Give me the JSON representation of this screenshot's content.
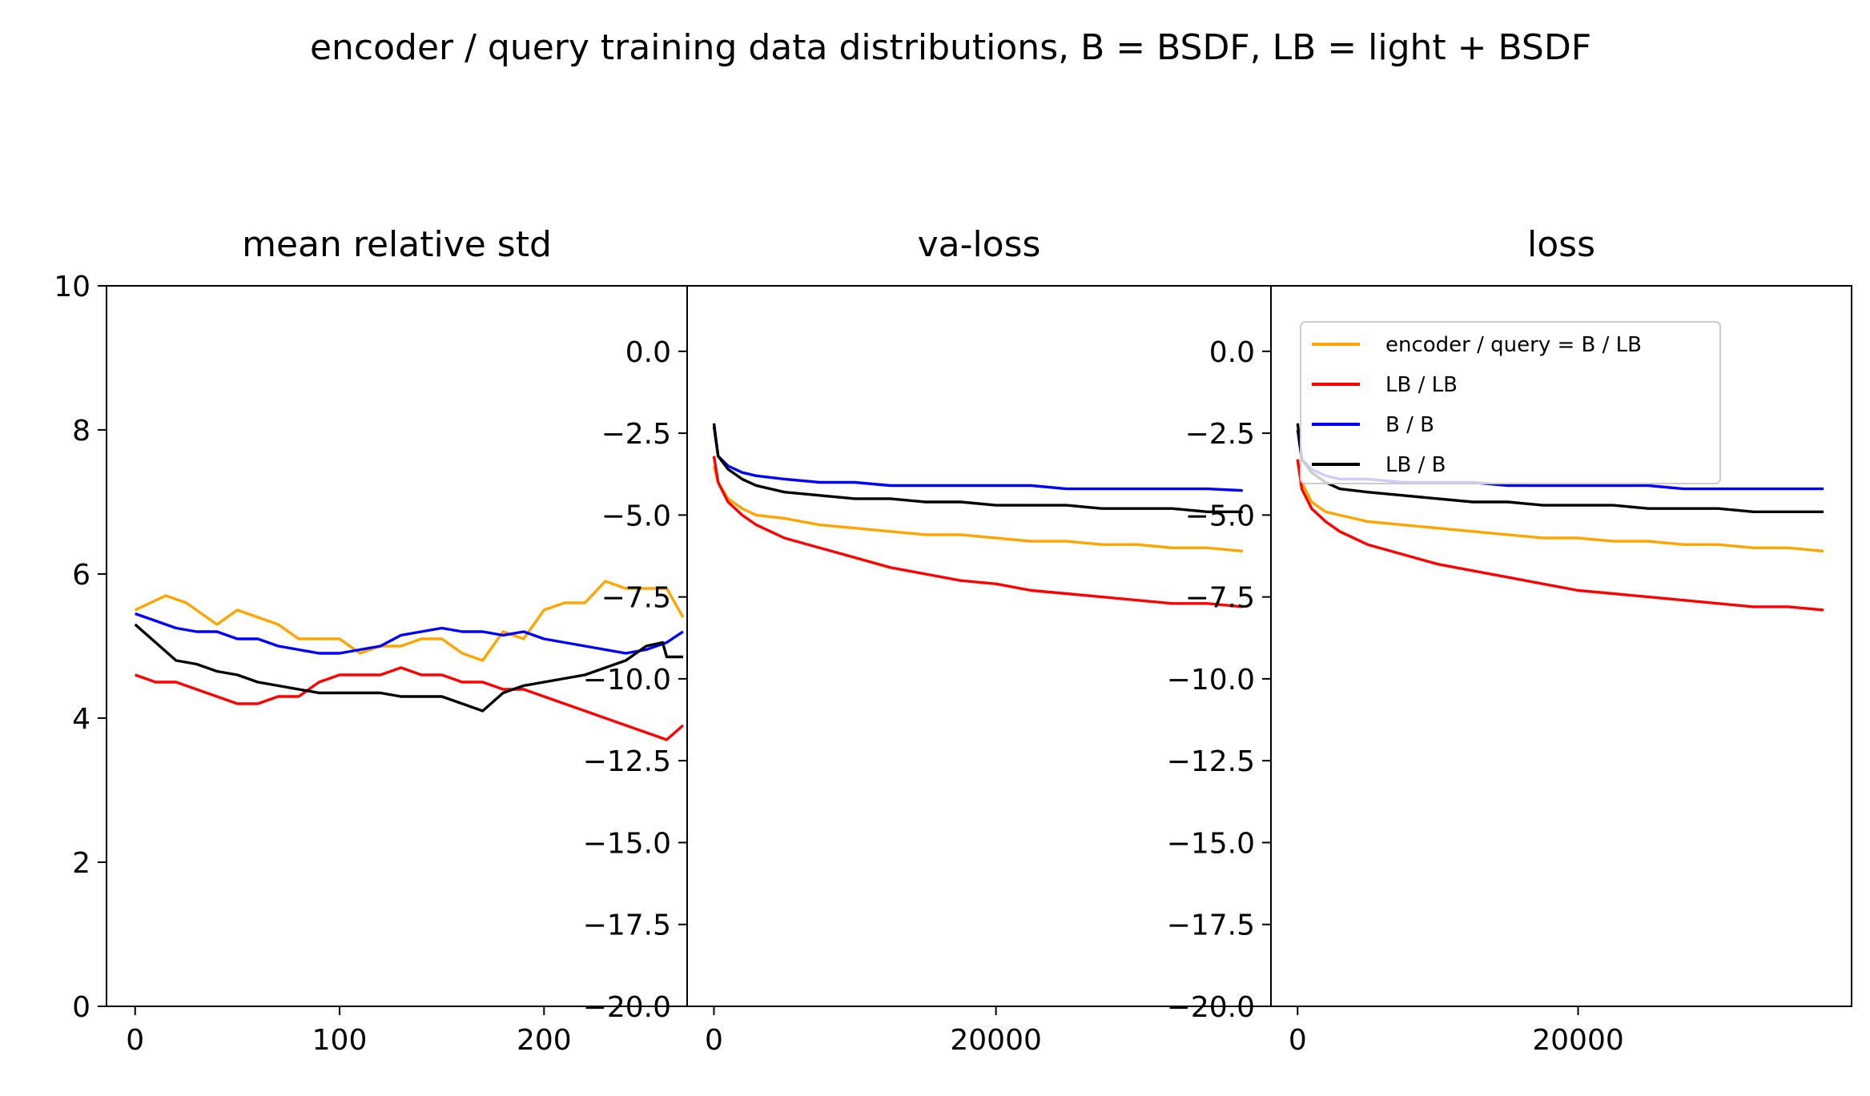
{
  "suptitle": "encoder / query training data distributions, B = BSDF, LB = light + BSDF",
  "chart_data": [
    {
      "type": "line",
      "title": "mean relative std",
      "xlabel": "",
      "ylabel": "",
      "xlim": [
        -14,
        270
      ],
      "ylim": [
        0,
        10
      ],
      "xticks": [
        0,
        100,
        200
      ],
      "xtick_labels": [
        "0",
        "100",
        "200"
      ],
      "yticks": [
        0,
        2,
        4,
        6,
        8,
        10
      ],
      "ytick_labels": [
        "0",
        "2",
        "4",
        "6",
        "8",
        "10"
      ],
      "grid": false,
      "series": [
        {
          "name": "encoder / query = B  / LB",
          "color": "#ffa500",
          "x": [
            0,
            15,
            25,
            40,
            50,
            60,
            70,
            80,
            90,
            100,
            110,
            120,
            130,
            140,
            150,
            160,
            170,
            180,
            190,
            200,
            210,
            220,
            230,
            240,
            250,
            260,
            268
          ],
          "y": [
            5.5,
            5.7,
            5.6,
            5.3,
            5.5,
            5.4,
            5.3,
            5.1,
            5.1,
            5.1,
            4.9,
            5.0,
            5.0,
            5.1,
            5.1,
            4.9,
            4.8,
            5.2,
            5.1,
            5.5,
            5.6,
            5.6,
            5.9,
            5.8,
            5.8,
            5.8,
            5.4
          ]
        },
        {
          "name": "LB / LB",
          "color": "#ff0000",
          "x": [
            0,
            10,
            20,
            30,
            40,
            50,
            60,
            70,
            80,
            90,
            100,
            110,
            120,
            130,
            140,
            150,
            160,
            170,
            180,
            190,
            200,
            210,
            220,
            230,
            240,
            250,
            260,
            268
          ],
          "y": [
            4.6,
            4.5,
            4.5,
            4.4,
            4.3,
            4.2,
            4.2,
            4.3,
            4.3,
            4.5,
            4.6,
            4.6,
            4.6,
            4.7,
            4.6,
            4.6,
            4.5,
            4.5,
            4.4,
            4.4,
            4.3,
            4.2,
            4.1,
            4.0,
            3.9,
            3.8,
            3.7,
            3.9
          ]
        },
        {
          "name": "B  / B",
          "color": "#0000ff",
          "x": [
            0,
            10,
            20,
            30,
            40,
            50,
            60,
            70,
            80,
            90,
            100,
            110,
            120,
            130,
            140,
            150,
            160,
            170,
            180,
            190,
            200,
            210,
            220,
            230,
            240,
            250,
            260,
            268
          ],
          "y": [
            5.45,
            5.35,
            5.25,
            5.2,
            5.2,
            5.1,
            5.1,
            5.0,
            4.95,
            4.9,
            4.9,
            4.95,
            5.0,
            5.15,
            5.2,
            5.25,
            5.2,
            5.2,
            5.15,
            5.2,
            5.1,
            5.05,
            5.0,
            4.95,
            4.9,
            4.95,
            5.05,
            5.2
          ]
        },
        {
          "name": "LB / B",
          "color": "#000000",
          "x": [
            0,
            10,
            20,
            30,
            40,
            50,
            60,
            70,
            80,
            90,
            100,
            110,
            120,
            130,
            140,
            150,
            160,
            170,
            180,
            190,
            200,
            210,
            220,
            230,
            240,
            250,
            258,
            260,
            268
          ],
          "y": [
            5.3,
            5.05,
            4.8,
            4.75,
            4.65,
            4.6,
            4.5,
            4.45,
            4.4,
            4.35,
            4.35,
            4.35,
            4.35,
            4.3,
            4.3,
            4.3,
            4.2,
            4.1,
            4.35,
            4.45,
            4.5,
            4.55,
            4.6,
            4.7,
            4.8,
            5.0,
            5.05,
            4.85,
            4.85
          ]
        }
      ]
    },
    {
      "type": "line",
      "title": "va-loss",
      "xlabel": "",
      "ylabel": "",
      "xlim": [
        -1900,
        39500
      ],
      "ylim": [
        -20,
        2
      ],
      "xticks": [
        0,
        20000
      ],
      "xtick_labels": [
        "0",
        "20000"
      ],
      "yticks": [
        0.0,
        -2.5,
        -5.0,
        -7.5,
        -10.0,
        -12.5,
        -15.0,
        -17.5,
        -20.0
      ],
      "ytick_labels": [
        "0.0",
        "−2.5",
        "−5.0",
        "−7.5",
        "−10.0",
        "−12.5",
        "−15.0",
        "−17.5",
        "−20.0"
      ],
      "grid": false,
      "series": [
        {
          "name": "encoder / query = B  / LB",
          "color": "#ffa500",
          "x": [
            0,
            300,
            1000,
            2000,
            3000,
            5000,
            7500,
            10000,
            12500,
            15000,
            17500,
            20000,
            22500,
            25000,
            27500,
            30000,
            32500,
            35000,
            37500
          ],
          "y": [
            -3.5,
            -4.0,
            -4.5,
            -4.8,
            -5.0,
            -5.1,
            -5.3,
            -5.4,
            -5.5,
            -5.6,
            -5.6,
            -5.7,
            -5.8,
            -5.8,
            -5.9,
            -5.9,
            -6.0,
            -6.0,
            -6.1
          ]
        },
        {
          "name": "LB / LB",
          "color": "#ff0000",
          "x": [
            0,
            300,
            1000,
            2000,
            3000,
            5000,
            7500,
            10000,
            12500,
            15000,
            17500,
            20000,
            22500,
            25000,
            27500,
            30000,
            32500,
            35000,
            37500
          ],
          "y": [
            -3.2,
            -4.0,
            -4.6,
            -5.0,
            -5.3,
            -5.7,
            -6.0,
            -6.3,
            -6.6,
            -6.8,
            -7.0,
            -7.1,
            -7.3,
            -7.4,
            -7.5,
            -7.6,
            -7.7,
            -7.7,
            -7.8
          ]
        },
        {
          "name": "B  / B",
          "color": "#0000ff",
          "x": [
            0,
            300,
            1000,
            2000,
            3000,
            5000,
            7500,
            10000,
            12500,
            15000,
            17500,
            20000,
            22500,
            25000,
            27500,
            30000,
            32500,
            35000,
            37500
          ],
          "y": [
            -2.3,
            -3.2,
            -3.5,
            -3.7,
            -3.8,
            -3.9,
            -4.0,
            -4.0,
            -4.1,
            -4.1,
            -4.1,
            -4.1,
            -4.1,
            -4.2,
            -4.2,
            -4.2,
            -4.2,
            -4.2,
            -4.25
          ]
        },
        {
          "name": "LB / B",
          "color": "#000000",
          "x": [
            0,
            300,
            1000,
            2000,
            3000,
            5000,
            7500,
            10000,
            12500,
            15000,
            17500,
            20000,
            22500,
            25000,
            27500,
            30000,
            32500,
            35000,
            37500
          ],
          "y": [
            -2.2,
            -3.2,
            -3.6,
            -3.9,
            -4.1,
            -4.3,
            -4.4,
            -4.5,
            -4.5,
            -4.6,
            -4.6,
            -4.7,
            -4.7,
            -4.7,
            -4.8,
            -4.8,
            -4.8,
            -4.9,
            -4.9
          ]
        }
      ]
    },
    {
      "type": "line",
      "title": "loss",
      "xlabel": "",
      "ylabel": "",
      "xlim": [
        -1900,
        39500
      ],
      "ylim": [
        -20,
        2
      ],
      "xticks": [
        0,
        20000
      ],
      "xtick_labels": [
        "0",
        "20000"
      ],
      "yticks": [
        0.0,
        -2.5,
        -5.0,
        -7.5,
        -10.0,
        -12.5,
        -15.0,
        -17.5,
        -20.0
      ],
      "ytick_labels": [
        "0.0",
        "−2.5",
        "−5.0",
        "−7.5",
        "−10.0",
        "−12.5",
        "−15.0",
        "−17.5",
        "−20.0"
      ],
      "grid": false,
      "legend": {
        "placement": "top-right",
        "entries": [
          "encoder / query = B  / LB",
          "LB / LB",
          "B  / B",
          "LB / B"
        ]
      },
      "series": [
        {
          "name": "encoder / query = B  / LB",
          "color": "#ffa500",
          "x": [
            0,
            300,
            1000,
            2000,
            3000,
            5000,
            7500,
            10000,
            12500,
            15000,
            17500,
            20000,
            22500,
            25000,
            27500,
            30000,
            32500,
            35000,
            37500
          ],
          "y": [
            -3.4,
            -4.0,
            -4.6,
            -4.9,
            -5.0,
            -5.2,
            -5.3,
            -5.4,
            -5.5,
            -5.6,
            -5.7,
            -5.7,
            -5.8,
            -5.8,
            -5.9,
            -5.9,
            -6.0,
            -6.0,
            -6.1
          ]
        },
        {
          "name": "LB / LB",
          "color": "#ff0000",
          "x": [
            0,
            300,
            1000,
            2000,
            3000,
            5000,
            7500,
            10000,
            12500,
            15000,
            17500,
            20000,
            22500,
            25000,
            27500,
            30000,
            32500,
            35000,
            37500
          ],
          "y": [
            -3.3,
            -4.2,
            -4.8,
            -5.2,
            -5.5,
            -5.9,
            -6.2,
            -6.5,
            -6.7,
            -6.9,
            -7.1,
            -7.3,
            -7.4,
            -7.5,
            -7.6,
            -7.7,
            -7.8,
            -7.8,
            -7.9
          ]
        },
        {
          "name": "B  / B",
          "color": "#0000ff",
          "x": [
            0,
            300,
            1000,
            2000,
            3000,
            5000,
            7500,
            10000,
            12500,
            15000,
            17500,
            20000,
            22500,
            25000,
            27500,
            30000,
            32500,
            35000,
            37500
          ],
          "y": [
            -2.4,
            -3.3,
            -3.6,
            -3.8,
            -3.9,
            -3.9,
            -4.0,
            -4.0,
            -4.0,
            -4.1,
            -4.1,
            -4.1,
            -4.1,
            -4.1,
            -4.2,
            -4.2,
            -4.2,
            -4.2,
            -4.2
          ]
        },
        {
          "name": "LB / B",
          "color": "#000000",
          "x": [
            0,
            300,
            1000,
            2000,
            3000,
            5000,
            7500,
            10000,
            12500,
            15000,
            17500,
            20000,
            22500,
            25000,
            27500,
            30000,
            32500,
            35000,
            37500
          ],
          "y": [
            -2.2,
            -3.3,
            -3.7,
            -4.0,
            -4.2,
            -4.3,
            -4.4,
            -4.5,
            -4.6,
            -4.6,
            -4.7,
            -4.7,
            -4.7,
            -4.8,
            -4.8,
            -4.8,
            -4.9,
            -4.9,
            -4.9
          ]
        }
      ]
    }
  ]
}
